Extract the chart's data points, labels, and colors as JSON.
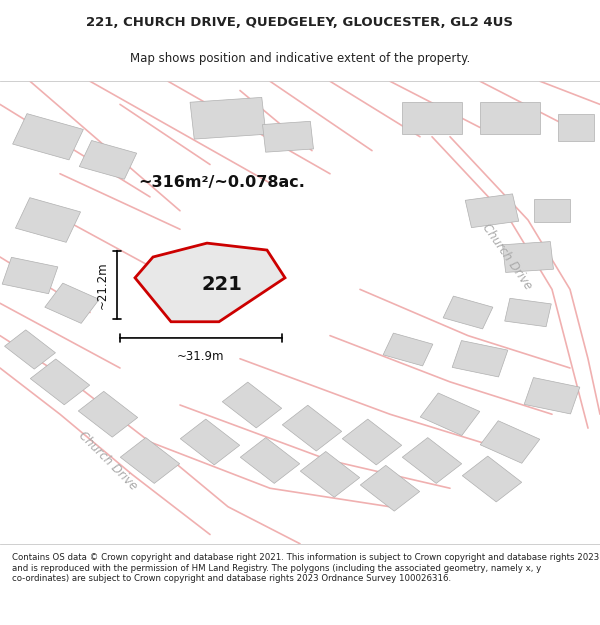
{
  "title_line1": "221, CHURCH DRIVE, QUEDGELEY, GLOUCESTER, GL2 4US",
  "title_line2": "Map shows position and indicative extent of the property.",
  "footer_text": "Contains OS data © Crown copyright and database right 2021. This information is subject to Crown copyright and database rights 2023 and is reproduced with the permission of HM Land Registry. The polygons (including the associated geometry, namely x, y co-ordinates) are subject to Crown copyright and database rights 2023 Ordnance Survey 100026316.",
  "area_label": "~316m²/~0.078ac.",
  "plot_number": "221",
  "width_label": "~31.9m",
  "height_label": "~21.2m",
  "map_bg": "#f5f5f5",
  "road_color_pink": "#f0b0b0",
  "building_color": "#d8d8d8",
  "building_outline": "#b0b0b0",
  "plot_color_fill": "#e8e8e8",
  "plot_outline_color": "#cc0000",
  "road_label_color": "#aaaaaa",
  "road_label_2": "Church Drive",
  "road_label_3": "Church Drive",
  "title_bg": "#ffffff",
  "footer_bg": "#ffffff"
}
